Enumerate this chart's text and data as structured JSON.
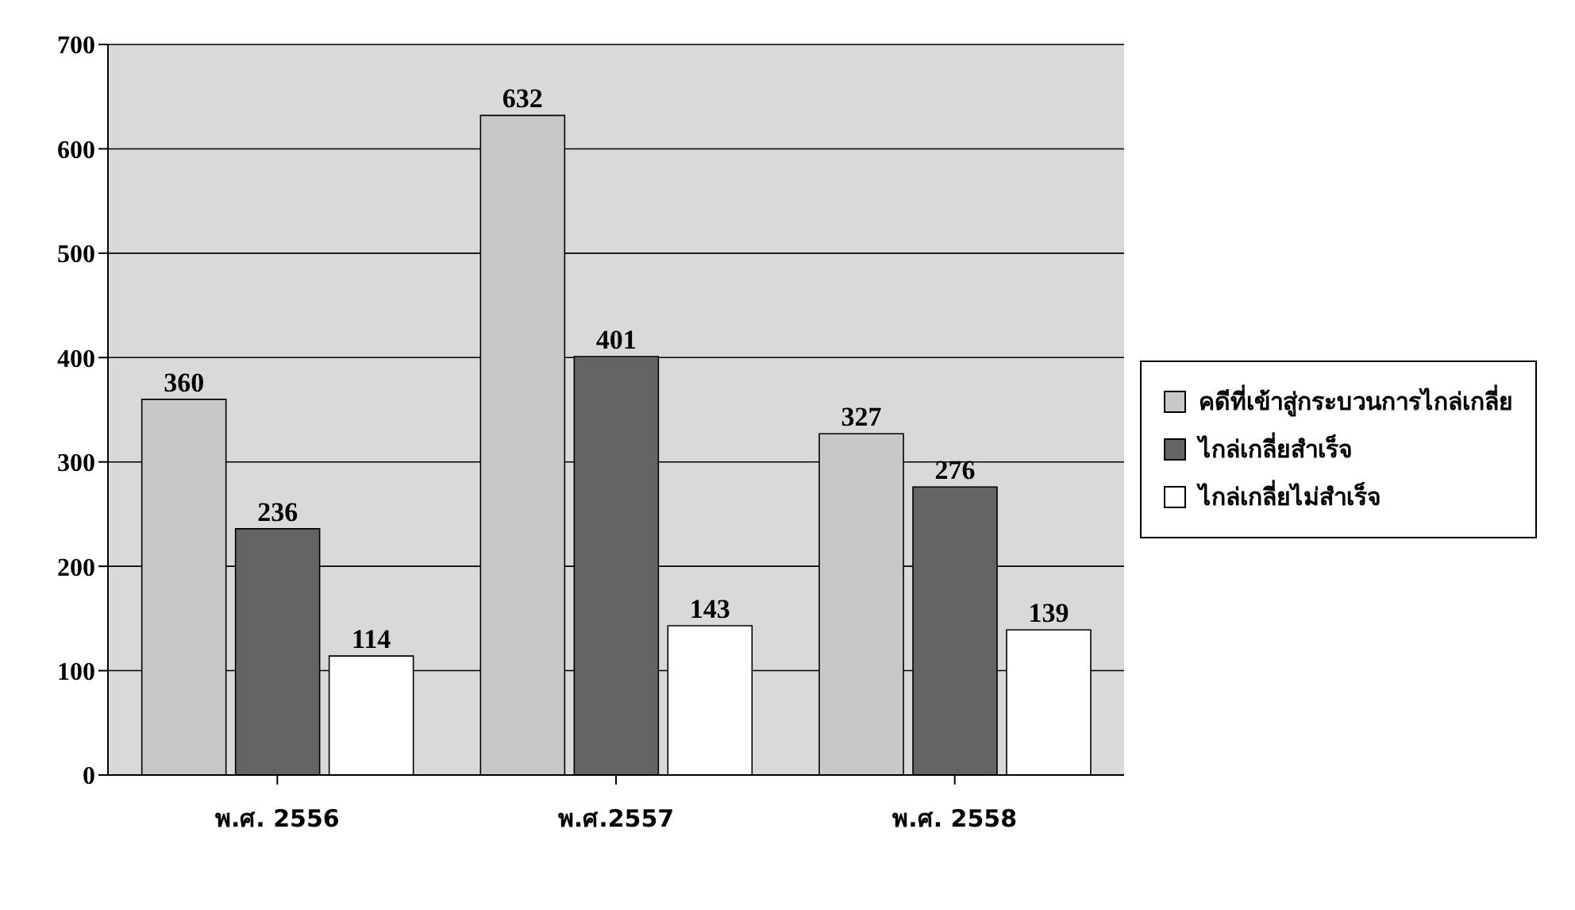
{
  "chart_data": {
    "type": "bar",
    "categories": [
      "พ.ศ. 2556",
      "พ.ศ.2557",
      "พ.ศ. 2558"
    ],
    "series": [
      {
        "name": "คดีที่เข้าสู่กระบวนการไกล่เกลี่ย",
        "color": "#c8c8c8",
        "values": [
          360,
          632,
          327
        ]
      },
      {
        "name": "ไกล่เกลี่ยสำเร็จ",
        "color": "#646464",
        "values": [
          236,
          401,
          276
        ]
      },
      {
        "name": "ไกล่เกลี่ยไม่สำเร็จ",
        "color": "#ffffff",
        "values": [
          114,
          143,
          139
        ]
      }
    ],
    "ylim": [
      0,
      700
    ],
    "yticks": [
      0,
      100,
      200,
      300,
      400,
      500,
      600,
      700
    ],
    "grid": "y",
    "legend": "right",
    "data_labels": true
  }
}
